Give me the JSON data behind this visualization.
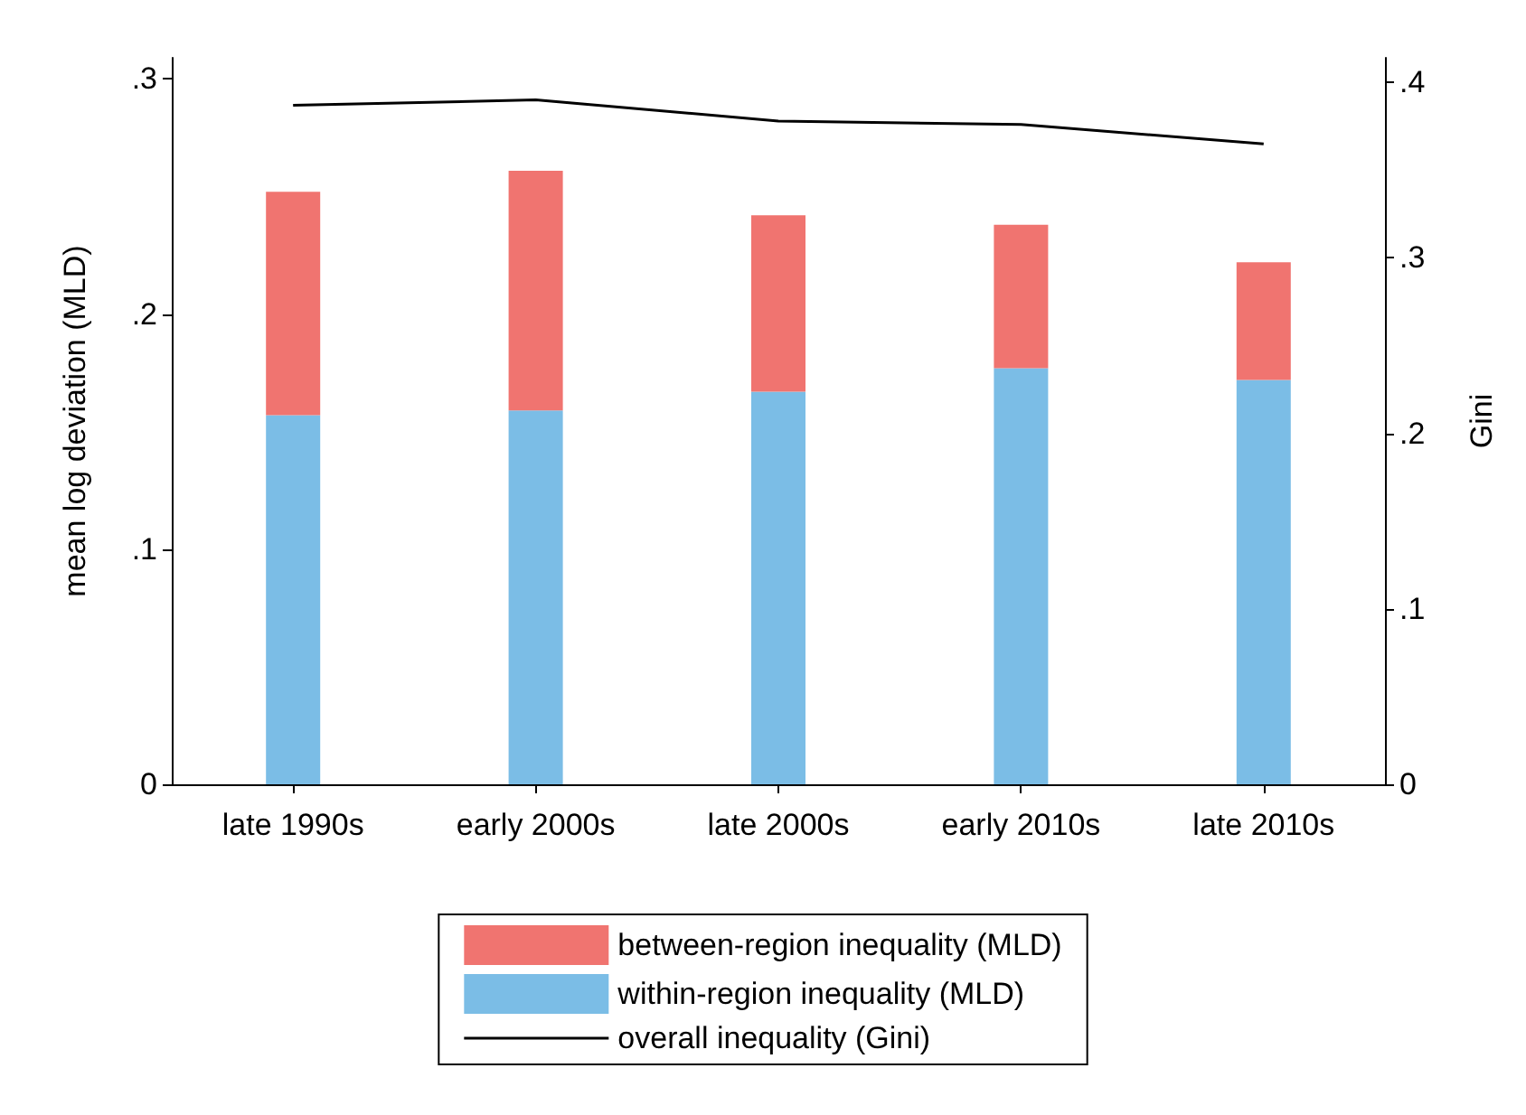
{
  "chart_data": {
    "type": "bar",
    "stacked": true,
    "categories": [
      "late 1990s",
      "early 2000s",
      "late 2000s",
      "early 2010s",
      "late 2010s"
    ],
    "ylabel": "mean log deviation (MLD)",
    "y2label": "Gini",
    "ylim": [
      0,
      0.309
    ],
    "yticks": [
      {
        "value": 0,
        "label": "0"
      },
      {
        "value": 0.1,
        "label": ".1"
      },
      {
        "value": 0.2,
        "label": ".2"
      },
      {
        "value": 0.3,
        "label": ".3"
      }
    ],
    "y2lim": [
      0,
      0.414
    ],
    "y2ticks": [
      {
        "value": 0,
        "label": "0"
      },
      {
        "value": 0.1,
        "label": ".1"
      },
      {
        "value": 0.2,
        "label": ".2"
      },
      {
        "value": 0.3,
        "label": ".3"
      },
      {
        "value": 0.4,
        "label": ".4"
      }
    ],
    "series": [
      {
        "name": "within-region inequality (MLD)",
        "color": "#7bbde6",
        "values": [
          0.157,
          0.159,
          0.167,
          0.177,
          0.172
        ]
      },
      {
        "name": "between-region inequality (MLD)",
        "color": "#f07470",
        "values": [
          0.095,
          0.102,
          0.075,
          0.061,
          0.05
        ]
      },
      {
        "name": "overall inequality (Gini)",
        "type": "line",
        "axis": "y2",
        "color": "#000000",
        "values": [
          0.387,
          0.39,
          0.378,
          0.376,
          0.365
        ]
      }
    ],
    "legend": "bottom",
    "grid": false,
    "marker": "none"
  }
}
